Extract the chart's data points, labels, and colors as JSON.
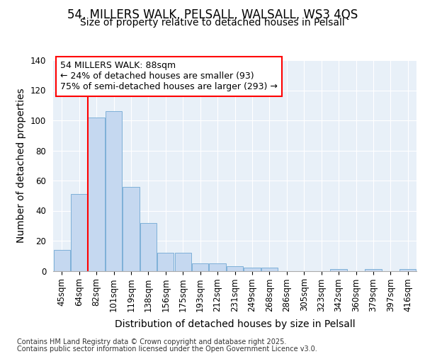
{
  "title1": "54, MILLERS WALK, PELSALL, WALSALL, WS3 4QS",
  "title2": "Size of property relative to detached houses in Pelsall",
  "xlabel": "Distribution of detached houses by size in Pelsall",
  "ylabel": "Number of detached properties",
  "categories": [
    "45sqm",
    "64sqm",
    "82sqm",
    "101sqm",
    "119sqm",
    "138sqm",
    "156sqm",
    "175sqm",
    "193sqm",
    "212sqm",
    "231sqm",
    "249sqm",
    "268sqm",
    "286sqm",
    "305sqm",
    "323sqm",
    "342sqm",
    "360sqm",
    "379sqm",
    "397sqm",
    "416sqm"
  ],
  "values": [
    14,
    51,
    102,
    106,
    56,
    32,
    12,
    12,
    5,
    5,
    3,
    2,
    2,
    0,
    0,
    0,
    1,
    0,
    1,
    0,
    1
  ],
  "bar_color": "#c5d8f0",
  "bar_edge_color": "#7eb0d8",
  "vline_x": 2.0,
  "vline_color": "red",
  "annotation_line1": "54 MILLERS WALK: 88sqm",
  "annotation_line2": "← 24% of detached houses are smaller (93)",
  "annotation_line3": "75% of semi-detached houses are larger (293) →",
  "ylim": [
    0,
    140
  ],
  "yticks": [
    0,
    20,
    40,
    60,
    80,
    100,
    120,
    140
  ],
  "footnote1": "Contains HM Land Registry data © Crown copyright and database right 2025.",
  "footnote2": "Contains public sector information licensed under the Open Government Licence v3.0.",
  "fig_bg_color": "#ffffff",
  "plot_bg_color": "#e8f0f8",
  "grid_color": "#ffffff",
  "title_fontsize": 12,
  "subtitle_fontsize": 10,
  "axis_label_fontsize": 10,
  "tick_fontsize": 8.5,
  "annotation_fontsize": 9,
  "footnote_fontsize": 7
}
